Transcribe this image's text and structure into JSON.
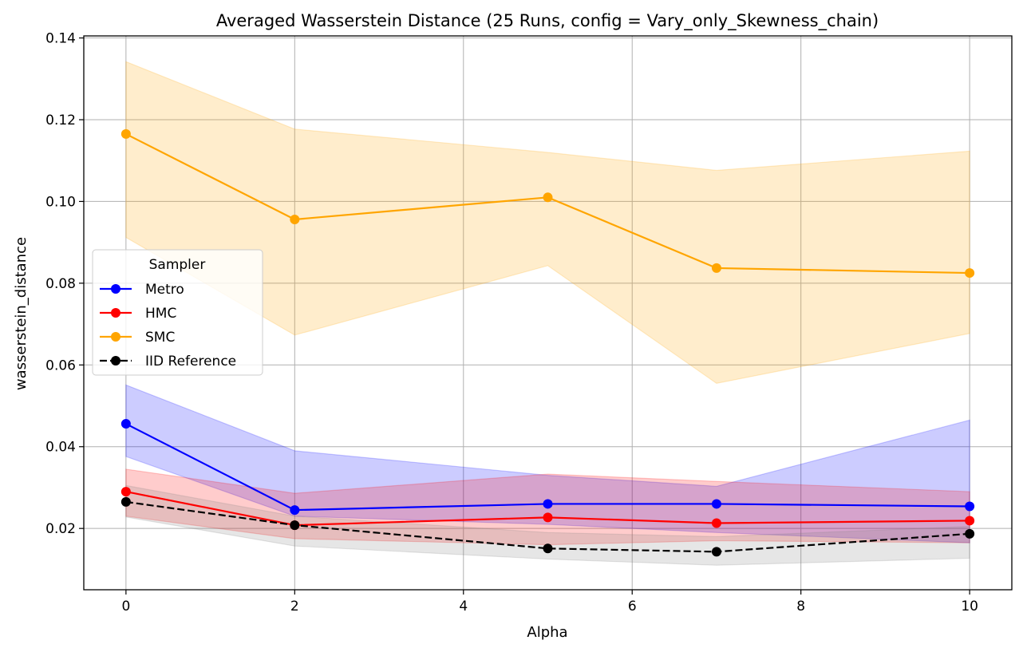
{
  "chart_data": {
    "type": "line",
    "title": "Averaged Wasserstein Distance (25 Runs, config = Vary_only_Skewness_chain)",
    "xlabel": "Alpha",
    "ylabel": "wasserstein_distance",
    "xlim": [
      -0.5,
      10.5
    ],
    "ylim": [
      0.005,
      0.1405
    ],
    "xticks": [
      0,
      2,
      4,
      6,
      8,
      10
    ],
    "xtick_labels": [
      "0",
      "2",
      "4",
      "6",
      "8",
      "10"
    ],
    "yticks": [
      0.02,
      0.04,
      0.06,
      0.08,
      0.1,
      0.12,
      0.14
    ],
    "ytick_labels": [
      "0.02",
      "0.04",
      "0.06",
      "0.08",
      "0.10",
      "0.12",
      "0.14"
    ],
    "grid": true,
    "legend": {
      "title": "Sampler",
      "placement": "center-left"
    },
    "x": [
      0,
      2,
      5,
      7,
      10
    ],
    "series": [
      {
        "name": "SMC",
        "color": "#ffa500",
        "dashed": false,
        "values": [
          0.1165,
          0.0956,
          0.101,
          0.0837,
          0.0825
        ],
        "band_upper": [
          0.1342,
          0.1177,
          0.112,
          0.1076,
          0.1123
        ],
        "band_lower": [
          0.0912,
          0.0673,
          0.0843,
          0.0555,
          0.0677
        ],
        "band_opacity": 0.2
      },
      {
        "name": "Metro",
        "color": "#0000ff",
        "dashed": false,
        "values": [
          0.0456,
          0.0245,
          0.026,
          0.026,
          0.0254
        ],
        "band_upper": [
          0.0551,
          0.039,
          0.033,
          0.0303,
          0.0465
        ],
        "band_lower": [
          0.0376,
          0.023,
          0.021,
          0.019,
          0.0165
        ],
        "band_opacity": 0.2
      },
      {
        "name": "HMC",
        "color": "#ff0000",
        "dashed": false,
        "values": [
          0.029,
          0.0208,
          0.0227,
          0.0213,
          0.0219
        ],
        "band_upper": [
          0.0345,
          0.0286,
          0.0333,
          0.0315,
          0.029
        ],
        "band_lower": [
          0.023,
          0.0175,
          0.016,
          0.017,
          0.0165
        ],
        "band_opacity": 0.2
      },
      {
        "name": "IID Reference",
        "color": "#000000",
        "dashed": true,
        "values": [
          0.0265,
          0.0208,
          0.0151,
          0.0143,
          0.0187
        ],
        "band_upper": [
          0.0305,
          0.023,
          0.019,
          0.018,
          0.0205
        ],
        "band_lower": [
          0.0228,
          0.0157,
          0.0125,
          0.011,
          0.0127
        ],
        "band_color": "#808080",
        "band_opacity": 0.2
      }
    ],
    "legend_order": [
      "Metro",
      "HMC",
      "SMC",
      "IID Reference"
    ]
  }
}
